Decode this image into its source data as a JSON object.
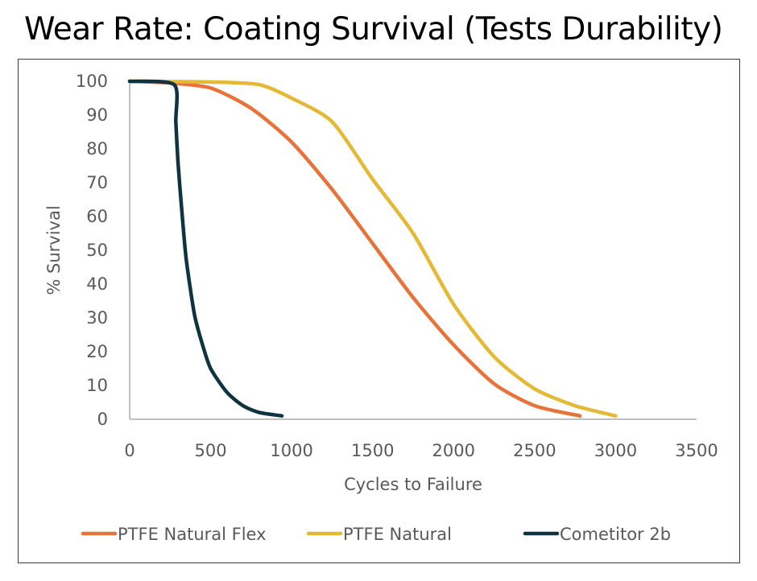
{
  "chart_data": {
    "type": "line",
    "title": "Wear Rate: Coating Survival (Tests Durability)",
    "xlabel": "Cycles to Failure",
    "ylabel": "% Survival",
    "xlim": [
      0,
      3500
    ],
    "ylim": [
      0,
      100
    ],
    "xticks": [
      0,
      500,
      1000,
      1500,
      2000,
      2500,
      3000,
      3500
    ],
    "yticks": [
      0,
      10,
      20,
      30,
      40,
      50,
      60,
      70,
      80,
      90,
      100
    ],
    "grid": false,
    "legend_position": "bottom",
    "series": [
      {
        "name": "PTFE Natural Flex",
        "color": "#E8733A",
        "points": [
          [
            0,
            100
          ],
          [
            250,
            99.5
          ],
          [
            500,
            98
          ],
          [
            750,
            92
          ],
          [
            1000,
            82
          ],
          [
            1250,
            68
          ],
          [
            1500,
            52
          ],
          [
            1750,
            36
          ],
          [
            2000,
            22
          ],
          [
            2250,
            10.5
          ],
          [
            2500,
            4
          ],
          [
            2780,
            1
          ]
        ]
      },
      {
        "name": "PTFE Natural",
        "color": "#E3B935",
        "points": [
          [
            0,
            100
          ],
          [
            500,
            99.8
          ],
          [
            800,
            99
          ],
          [
            1000,
            95
          ],
          [
            1250,
            88
          ],
          [
            1500,
            71
          ],
          [
            1750,
            55
          ],
          [
            2000,
            34
          ],
          [
            2250,
            18.5
          ],
          [
            2500,
            9
          ],
          [
            2750,
            4
          ],
          [
            3000,
            1
          ]
        ]
      },
      {
        "name": "Cometitor 2b",
        "color": "#0D3440",
        "points": [
          [
            0,
            100
          ],
          [
            275,
            99
          ],
          [
            285,
            88
          ],
          [
            300,
            75
          ],
          [
            325,
            60
          ],
          [
            350,
            47
          ],
          [
            400,
            31
          ],
          [
            450,
            22
          ],
          [
            500,
            15
          ],
          [
            600,
            8
          ],
          [
            700,
            4
          ],
          [
            800,
            2
          ],
          [
            940,
            1
          ]
        ]
      }
    ]
  }
}
